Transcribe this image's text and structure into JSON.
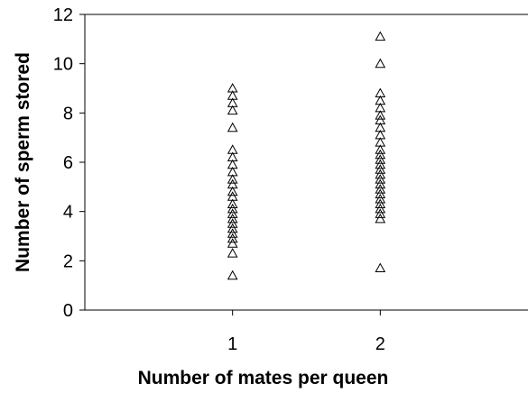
{
  "chart_data": {
    "type": "scatter",
    "title": "",
    "xlabel": "Number of mates per queen",
    "ylabel": "Number of sperm stored",
    "xlim": [
      0,
      3
    ],
    "ylim": [
      0,
      12
    ],
    "x_ticks": [
      "1",
      "2"
    ],
    "y_ticks": [
      "0",
      "2",
      "4",
      "6",
      "8",
      "10",
      "12"
    ],
    "grid": false,
    "legend": "none",
    "marker": "open-triangle",
    "series": [
      {
        "name": "",
        "points": [
          [
            1,
            9.0
          ],
          [
            1,
            8.7
          ],
          [
            1,
            8.4
          ],
          [
            1,
            8.1
          ],
          [
            1,
            7.4
          ],
          [
            1,
            6.5
          ],
          [
            1,
            6.2
          ],
          [
            1,
            5.9
          ],
          [
            1,
            5.6
          ],
          [
            1,
            5.3
          ],
          [
            1,
            5.1
          ],
          [
            1,
            4.8
          ],
          [
            1,
            4.6
          ],
          [
            1,
            4.3
          ],
          [
            1,
            4.1
          ],
          [
            1,
            3.9
          ],
          [
            1,
            3.7
          ],
          [
            1,
            3.5
          ],
          [
            1,
            3.3
          ],
          [
            1,
            3.1
          ],
          [
            1,
            2.9
          ],
          [
            1,
            2.7
          ],
          [
            1,
            2.3
          ],
          [
            1,
            1.4
          ],
          [
            2,
            11.1
          ],
          [
            2,
            10.0
          ],
          [
            2,
            8.8
          ],
          [
            2,
            8.5
          ],
          [
            2,
            8.2
          ],
          [
            2,
            7.9
          ],
          [
            2,
            7.7
          ],
          [
            2,
            7.4
          ],
          [
            2,
            7.1
          ],
          [
            2,
            6.8
          ],
          [
            2,
            6.5
          ],
          [
            2,
            6.3
          ],
          [
            2,
            6.1
          ],
          [
            2,
            5.9
          ],
          [
            2,
            5.7
          ],
          [
            2,
            5.5
          ],
          [
            2,
            5.3
          ],
          [
            2,
            5.1
          ],
          [
            2,
            4.9
          ],
          [
            2,
            4.7
          ],
          [
            2,
            4.5
          ],
          [
            2,
            4.3
          ],
          [
            2,
            4.1
          ],
          [
            2,
            3.9
          ],
          [
            2,
            3.7
          ],
          [
            2,
            1.7
          ]
        ]
      }
    ]
  }
}
